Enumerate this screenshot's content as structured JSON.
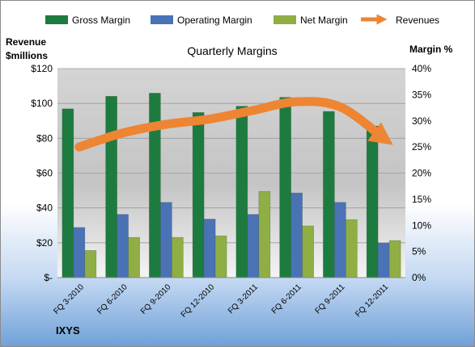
{
  "chart_data": {
    "type": "bar",
    "title": "Quarterly Margins",
    "left_axis_title": [
      "Revenue",
      "$millions"
    ],
    "right_axis_title": "Margin %",
    "categories": [
      "FQ 3-2010",
      "FQ 6-2010",
      "FQ 9-2010",
      "FQ 12-2010",
      "FQ 3-2011",
      "FQ 6-2011",
      "FQ 9-2011",
      "FQ 12-2011"
    ],
    "left_ylim": [
      0,
      120
    ],
    "left_ticks": [
      0,
      20,
      40,
      60,
      80,
      100,
      120
    ],
    "left_tick_labels": [
      "$-",
      "$20",
      "$40",
      "$60",
      "$80",
      "$100",
      "$120"
    ],
    "right_ylim": [
      0,
      40
    ],
    "right_ticks": [
      0,
      5,
      10,
      15,
      20,
      25,
      30,
      35,
      40
    ],
    "right_tick_labels": [
      "0%",
      "5%",
      "10%",
      "15%",
      "20%",
      "25%",
      "30%",
      "35%",
      "40%"
    ],
    "series": [
      {
        "name": "Gross Margin",
        "axis": "right",
        "color": "#1e7b3f",
        "values": [
          32.3,
          34.7,
          35.3,
          31.6,
          32.8,
          34.5,
          31.8,
          29.0
        ]
      },
      {
        "name": "Operating Margin",
        "axis": "right",
        "color": "#4a73b5",
        "values": [
          9.6,
          12.1,
          14.4,
          11.2,
          12.1,
          16.2,
          14.4,
          6.6
        ]
      },
      {
        "name": "Net Margin",
        "axis": "right",
        "color": "#8fae44",
        "values": [
          5.2,
          7.7,
          7.7,
          8.0,
          16.5,
          9.9,
          11.1,
          7.1
        ]
      },
      {
        "name": "Revenues",
        "axis": "left",
        "color": "#ed8533",
        "type": "line",
        "values": [
          75,
          83,
          88,
          91,
          96,
          101,
          98,
          80
        ]
      }
    ],
    "grid": true,
    "legend_position": "top",
    "footer": "IXYS"
  }
}
